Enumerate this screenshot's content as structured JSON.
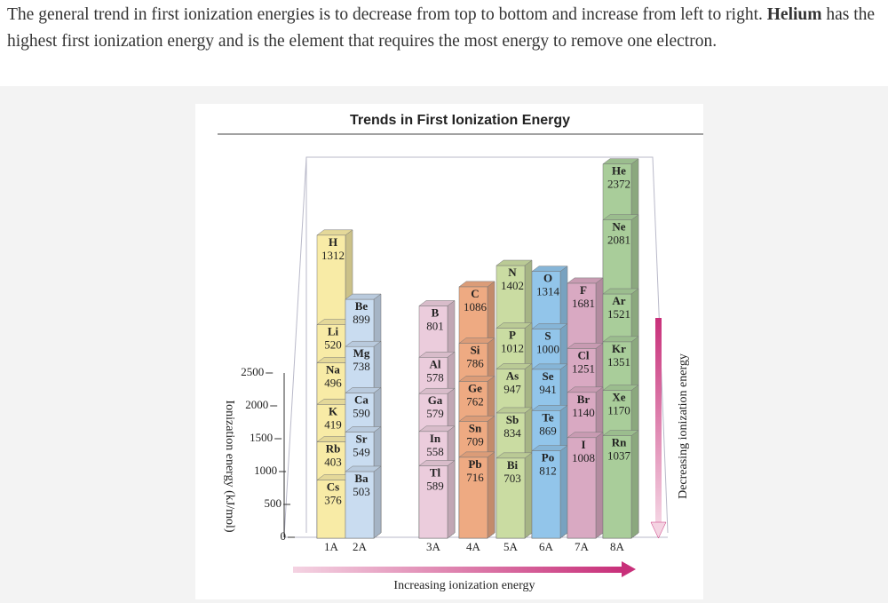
{
  "paragraph": {
    "text_before": "The general trend in first ionization energies is to decrease from top to bottom and increase from left to right.",
    "bold": "Helium",
    "text_after": "has the highest first ionization energy and is the element that requires the most energy to remove one electron."
  },
  "figure": {
    "title": "Trends in First Ionization Energy",
    "y_axis_label": "Ionization energy (kJ/mol)",
    "yticks": [
      0,
      500,
      1000,
      1500,
      2000,
      2500
    ],
    "x_axis_label": "Increasing ionization energy",
    "right_label": "Decreasing ionization energy",
    "groups": [
      {
        "name": "1A",
        "color": "#f8eba6",
        "elements": [
          {
            "symbol": "H",
            "value": 1312
          },
          {
            "symbol": "Li",
            "value": 520
          },
          {
            "symbol": "Na",
            "value": 496
          },
          {
            "symbol": "K",
            "value": 419
          },
          {
            "symbol": "Rb",
            "value": 403
          },
          {
            "symbol": "Cs",
            "value": 376
          }
        ]
      },
      {
        "name": "2A",
        "color": "#c9dcf0",
        "elements": [
          {
            "symbol": "Be",
            "value": 899
          },
          {
            "symbol": "Mg",
            "value": 738
          },
          {
            "symbol": "Ca",
            "value": 590
          },
          {
            "symbol": "Sr",
            "value": 549
          },
          {
            "symbol": "Ba",
            "value": 503
          }
        ]
      },
      {
        "name": "3A",
        "color": "#ebccdc",
        "elements": [
          {
            "symbol": "B",
            "value": 801
          },
          {
            "symbol": "Al",
            "value": 578
          },
          {
            "symbol": "Ga",
            "value": 579
          },
          {
            "symbol": "In",
            "value": 558
          },
          {
            "symbol": "Tl",
            "value": 589
          }
        ]
      },
      {
        "name": "4A",
        "color": "#eeaa82",
        "elements": [
          {
            "symbol": "C",
            "value": 1086
          },
          {
            "symbol": "Si",
            "value": 786
          },
          {
            "symbol": "Ge",
            "value": 762
          },
          {
            "symbol": "Sn",
            "value": 709
          },
          {
            "symbol": "Pb",
            "value": 716
          }
        ]
      },
      {
        "name": "5A",
        "color": "#cadca2",
        "elements": [
          {
            "symbol": "N",
            "value": 1402
          },
          {
            "symbol": "P",
            "value": 1012
          },
          {
            "symbol": "As",
            "value": 947
          },
          {
            "symbol": "Sb",
            "value": 834
          },
          {
            "symbol": "Bi",
            "value": 703
          }
        ]
      },
      {
        "name": "6A",
        "color": "#92c5ea",
        "elements": [
          {
            "symbol": "O",
            "value": 1314
          },
          {
            "symbol": "S",
            "value": 1000
          },
          {
            "symbol": "Se",
            "value": 941
          },
          {
            "symbol": "Te",
            "value": 869
          },
          {
            "symbol": "Po",
            "value": 812
          }
        ]
      },
      {
        "name": "7A",
        "color": "#d9a9c2",
        "elements": [
          {
            "symbol": "F",
            "value": 1681
          },
          {
            "symbol": "Cl",
            "value": 1251
          },
          {
            "symbol": "Br",
            "value": 1140
          },
          {
            "symbol": "I",
            "value": 1008
          }
        ]
      },
      {
        "name": "8A",
        "color": "#a9cd9a",
        "elements": [
          {
            "symbol": "He",
            "value": 2372
          },
          {
            "symbol": "Ne",
            "value": 2081
          },
          {
            "symbol": "Ar",
            "value": 1521
          },
          {
            "symbol": "Kr",
            "value": 1351
          },
          {
            "symbol": "Xe",
            "value": 1170
          },
          {
            "symbol": "Rn",
            "value": 1037
          }
        ]
      }
    ]
  }
}
